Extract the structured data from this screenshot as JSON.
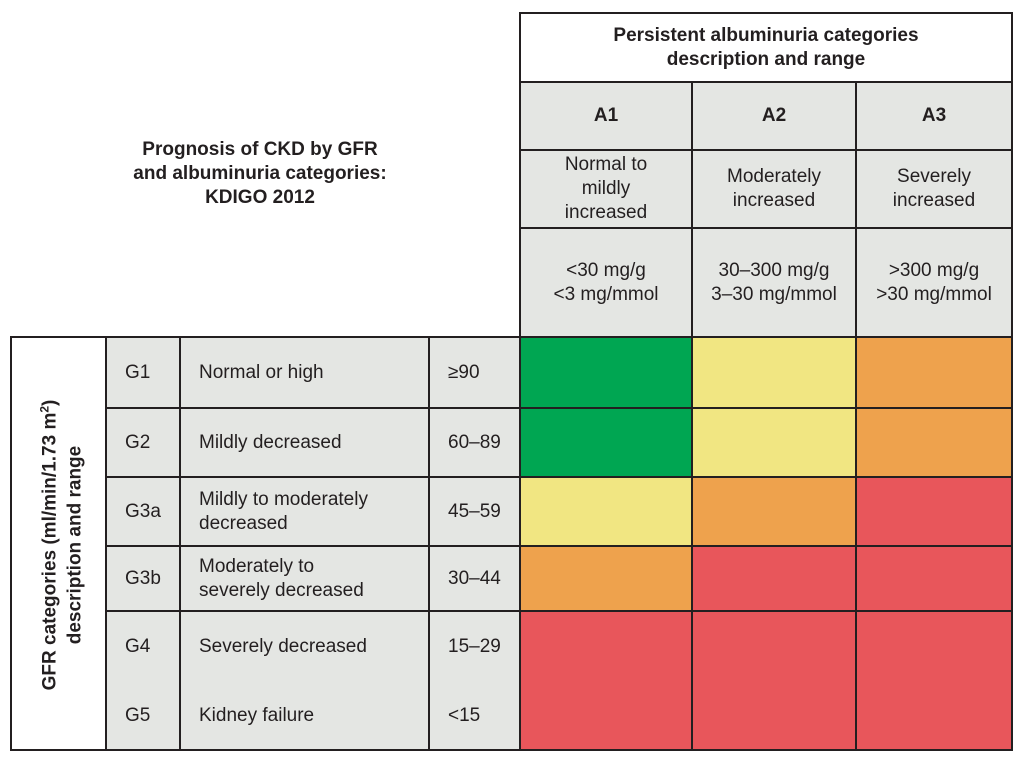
{
  "title": "Prognosis of CKD by GFR\nand albuminuria categories:\nKDIGO 2012",
  "albuminuria_header": "Persistent albuminuria categories\ndescription and range",
  "albuminuria_columns": [
    {
      "code": "A1",
      "description": "Normal to\nmildly\nincreased",
      "range": "<30 mg/g\n<3 mg/mmol"
    },
    {
      "code": "A2",
      "description": "Moderately\nincreased",
      "range": "30–300 mg/g\n3–30 mg/mmol"
    },
    {
      "code": "A3",
      "description": "Severely\nincreased",
      "range": ">300 mg/g\n>30 mg/mmol"
    }
  ],
  "gfr_axis_label": "GFR categories (ml/min/1.73 m²)\ndescription and range",
  "gfr_rows": [
    {
      "code": "G1",
      "description": "Normal or high",
      "range": "≥90"
    },
    {
      "code": "G2",
      "description": "Mildly decreased",
      "range": "60–89"
    },
    {
      "code": "G3a",
      "description": "Mildly to moderately\ndecreased",
      "range": "45–59"
    },
    {
      "code": "G3b",
      "description": "Moderately to\nseverely decreased",
      "range": "30–44"
    },
    {
      "code": "G4",
      "description": "Severely decreased",
      "range": "15–29"
    },
    {
      "code": "G5",
      "description": "Kidney failure",
      "range": "<15"
    }
  ],
  "risk_colors": {
    "green": "#00a652",
    "yellow": "#f1e682",
    "orange": "#eea24d",
    "red": "#e8565b"
  },
  "risk_grid": [
    [
      "green",
      "yellow",
      "orange"
    ],
    [
      "green",
      "yellow",
      "orange"
    ],
    [
      "yellow",
      "orange",
      "red"
    ],
    [
      "orange",
      "red",
      "red"
    ],
    [
      "red",
      "red",
      "red"
    ],
    [
      "red",
      "red",
      "red"
    ]
  ]
}
